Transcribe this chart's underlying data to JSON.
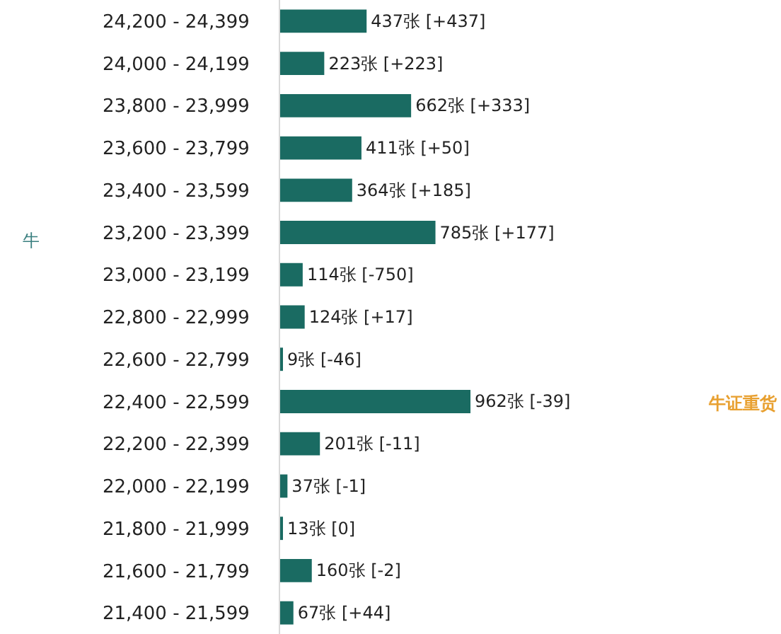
{
  "chart_data": {
    "type": "bar",
    "orientation": "horizontal",
    "color": "#1a6b62",
    "categories": [
      "24,200 - 24,399",
      "24,000 - 24,199",
      "23,800 - 23,999",
      "23,600 - 23,799",
      "23,400 - 23,599",
      "23,200 - 23,399",
      "23,000 - 23,199",
      "22,800 - 22,999",
      "22,600 - 22,799",
      "22,400 - 22,599",
      "22,200 - 22,399",
      "22,000 - 22,199",
      "21,800 - 21,999",
      "21,600 - 21,799",
      "21,400 - 21,599"
    ],
    "values": [
      437,
      223,
      662,
      411,
      364,
      785,
      114,
      124,
      9,
      962,
      201,
      37,
      13,
      160,
      67
    ],
    "value_labels": [
      "437张 [+437]",
      "223张 [+223]",
      "662张 [+333]",
      "411张 [+50]",
      "364张 [+185]",
      "785张 [+177]",
      "114张 [-750]",
      "124张 [+17]",
      "9张 [-46]",
      "962张 [-39]",
      "201张 [-11]",
      "37张 [-1]",
      "13张 [0]",
      "160张 [-2]",
      "67张 [+44]"
    ],
    "annotations": [
      "牛",
      "牛证重货"
    ]
  }
}
